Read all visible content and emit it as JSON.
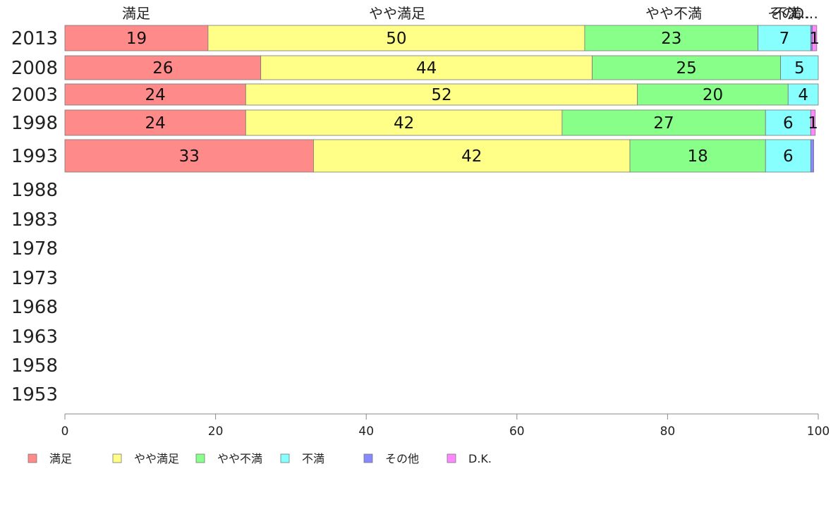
{
  "chart_data": {
    "type": "bar",
    "orientation": "horizontal",
    "stacked": true,
    "categories": [
      "2013",
      "2008",
      "2003",
      "1998",
      "1993",
      "1988",
      "1983",
      "1978",
      "1973",
      "1968",
      "1963",
      "1958",
      "1953"
    ],
    "top_labels": [
      "満足",
      "やや満足",
      "やや不満",
      "不満",
      "その…",
      "D…"
    ],
    "series": [
      {
        "name": "満足",
        "color": "#ff8a8a",
        "values": [
          19,
          26,
          24,
          24,
          33,
          null,
          null,
          null,
          null,
          null,
          null,
          null,
          null
        ]
      },
      {
        "name": "やや満足",
        "color": "#ffff88",
        "values": [
          50,
          44,
          52,
          42,
          42,
          null,
          null,
          null,
          null,
          null,
          null,
          null,
          null
        ]
      },
      {
        "name": "やや不満",
        "color": "#88ff88",
        "values": [
          23,
          25,
          20,
          27,
          18,
          null,
          null,
          null,
          null,
          null,
          null,
          null,
          null
        ]
      },
      {
        "name": "不満",
        "color": "#88ffff",
        "values": [
          7,
          5,
          4,
          6,
          6,
          null,
          null,
          null,
          null,
          null,
          null,
          null,
          null
        ]
      },
      {
        "name": "その他",
        "color": "#8888ff",
        "values": [
          0.2,
          0,
          0,
          0,
          0.4,
          null,
          null,
          null,
          null,
          null,
          null,
          null,
          null
        ]
      },
      {
        "name": "D.K.",
        "color": "#ff88ff",
        "values": [
          0.6,
          0,
          0,
          0.6,
          0,
          null,
          null,
          null,
          null,
          null,
          null,
          null,
          null
        ]
      }
    ],
    "data_labels": [
      [
        "19",
        "50",
        "23",
        "7",
        "",
        "1"
      ],
      [
        "26",
        "44",
        "25",
        "5",
        "",
        ""
      ],
      [
        "24",
        "52",
        "20",
        "4",
        "",
        ""
      ],
      [
        "24",
        "42",
        "27",
        "6",
        "",
        "1"
      ],
      [
        "33",
        "42",
        "18",
        "6",
        "",
        ""
      ]
    ],
    "xlim": [
      0,
      100
    ],
    "xticks": [
      "0",
      "20",
      "40",
      "60",
      "80",
      "100"
    ],
    "legend_position": "bottom-left",
    "grid": false
  }
}
